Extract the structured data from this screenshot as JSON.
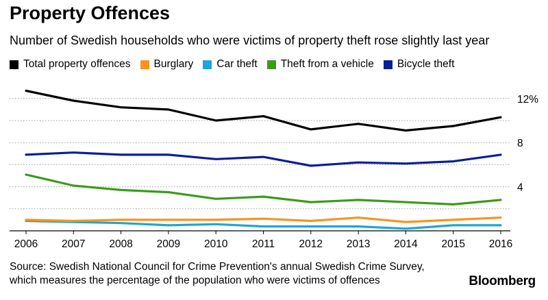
{
  "brand": "Bloomberg",
  "source_line1": "Source: Swedish National Council for Crime Prevention's annual Swedish Crime Survey,",
  "source_line2": "which measures the percentage of the population who were victims of offences",
  "chart_data": {
    "type": "line",
    "title": "Property Offences",
    "subtitle": "Number of Swedish households who were victims of property theft rose slightly last year",
    "x": [
      "2006",
      "2007",
      "2008",
      "2009",
      "2010",
      "2011",
      "2012",
      "2013",
      "2014",
      "2015",
      "2016"
    ],
    "xlabel": "",
    "ylabel": "",
    "ylim": [
      0,
      12.4
    ],
    "yticks": [
      4,
      8,
      12
    ],
    "ytick_labels": [
      "4",
      "8",
      "12%"
    ],
    "grid": true,
    "legend_position": "top",
    "series": [
      {
        "name": "Total property offences",
        "color": "#000000",
        "values": [
          12.7,
          11.8,
          11.2,
          11.0,
          10.0,
          10.4,
          9.2,
          9.7,
          9.1,
          9.5,
          10.3
        ]
      },
      {
        "name": "Burglary",
        "color": "#f7941d",
        "values": [
          1.0,
          0.9,
          1.0,
          1.0,
          1.0,
          1.1,
          0.9,
          1.2,
          0.8,
          1.0,
          1.2
        ]
      },
      {
        "name": "Car theft",
        "color": "#1ea5d6",
        "values": [
          0.9,
          0.8,
          0.7,
          0.5,
          0.6,
          0.4,
          0.4,
          0.4,
          0.2,
          0.5,
          0.5
        ]
      },
      {
        "name": "Theft from a vehicle",
        "color": "#3a9b1c",
        "values": [
          5.1,
          4.1,
          3.7,
          3.5,
          2.9,
          3.1,
          2.6,
          2.8,
          2.6,
          2.4,
          2.8
        ]
      },
      {
        "name": "Bicycle theft",
        "color": "#0a1e9a",
        "values": [
          6.9,
          7.1,
          6.9,
          6.9,
          6.5,
          6.7,
          5.9,
          6.2,
          6.1,
          6.3,
          6.9
        ]
      }
    ]
  }
}
